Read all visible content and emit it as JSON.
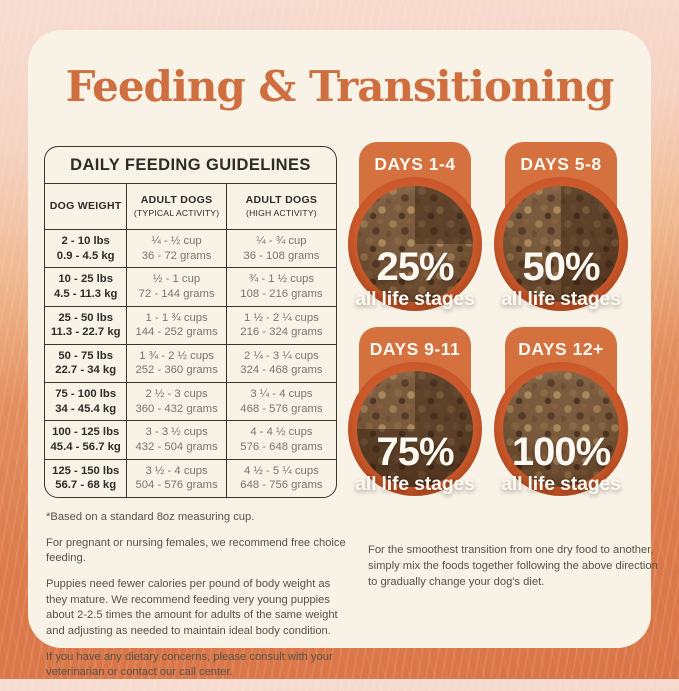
{
  "title": "Feeding & Transitioning",
  "colors": {
    "accent_orange": "#cf6e3e",
    "badge_orange": "#d4713f",
    "bowl_rim_orange": "#cc5a2c",
    "card_cream": "#f8f2e7",
    "fur_orange": "#dc7a4b",
    "ink": "#2e2c27",
    "muted_gray": "#7c7669"
  },
  "feeding_table": {
    "title": "DAILY FEEDING GUIDELINES",
    "columns": [
      {
        "label": "DOG WEIGHT",
        "sub": ""
      },
      {
        "label": "ADULT DOGS",
        "sub": "(TYPICAL ACTIVITY)"
      },
      {
        "label": "ADULT DOGS",
        "sub": "(HIGH ACTIVITY)"
      }
    ],
    "rows": [
      {
        "lbs": "2 - 10 lbs",
        "kg": "0.9 - 4.5 kg",
        "typ_cups": "¼ - ½ cup",
        "typ_grams": "36 - 72 grams",
        "high_cups": "¼ - ¾ cup",
        "high_grams": "36 - 108 grams"
      },
      {
        "lbs": "10 - 25 lbs",
        "kg": "4.5 - 11.3 kg",
        "typ_cups": "½ - 1 cup",
        "typ_grams": "72 - 144 grams",
        "high_cups": "¾ - 1 ½ cups",
        "high_grams": "108 - 216 grams"
      },
      {
        "lbs": "25 - 50 lbs",
        "kg": "11.3 - 22.7 kg",
        "typ_cups": "1 - 1 ¾ cups",
        "typ_grams": "144 - 252 grams",
        "high_cups": "1 ½ - 2 ¼ cups",
        "high_grams": "216 - 324 grams"
      },
      {
        "lbs": "50 - 75 lbs",
        "kg": "22.7 - 34 kg",
        "typ_cups": "1 ¾ - 2 ½ cups",
        "typ_grams": "252 - 360 grams",
        "high_cups": "2 ¼ - 3 ¼ cups",
        "high_grams": "324 - 468 grams"
      },
      {
        "lbs": "75 - 100 lbs",
        "kg": "34 - 45.4 kg",
        "typ_cups": "2 ½ - 3 cups",
        "typ_grams": "360 - 432 grams",
        "high_cups": "3 ¼ - 4 cups",
        "high_grams": "468 - 576 grams"
      },
      {
        "lbs": "100 - 125 lbs",
        "kg": "45.4 - 56.7 kg",
        "typ_cups": "3 - 3 ½ cups",
        "typ_grams": "432 - 504 grams",
        "high_cups": "4 - 4 ½ cups",
        "high_grams": "576 - 648 grams"
      },
      {
        "lbs": "125 - 150 lbs",
        "kg": "56.7 - 68 kg",
        "typ_cups": "3 ½ - 4 cups",
        "typ_grams": "504 - 576 grams",
        "high_cups": "4 ½ - 5 ¼ cups",
        "high_grams": "648 - 756 grams"
      }
    ]
  },
  "notes": [
    "*Based on a standard 8oz measuring cup.",
    "For pregnant or nursing females, we recommend free choice feeding.",
    "Puppies need fewer calories per pound of body weight as they mature. We recommend feeding very young puppies about 2-2.5 times the amount for adults of the same weight and adjusting as needed to maintain ideal body condition.",
    "If you have any dietary concerns, please consult with your veterinarian or contact our call center."
  ],
  "transition": {
    "stages": [
      {
        "days": "DAYS 1-4",
        "percent": "25%",
        "caption": "all life stages"
      },
      {
        "days": "DAYS 5-8",
        "percent": "50%",
        "caption": "all life stages"
      },
      {
        "days": "DAYS 9-11",
        "percent": "75%",
        "caption": "all life stages"
      },
      {
        "days": "DAYS 12+",
        "percent": "100%",
        "caption": "all life stages"
      }
    ],
    "note": "For the smoothest transition from one dry food to another, simply mix the foods together following the above direction to gradually change your dog's diet."
  }
}
